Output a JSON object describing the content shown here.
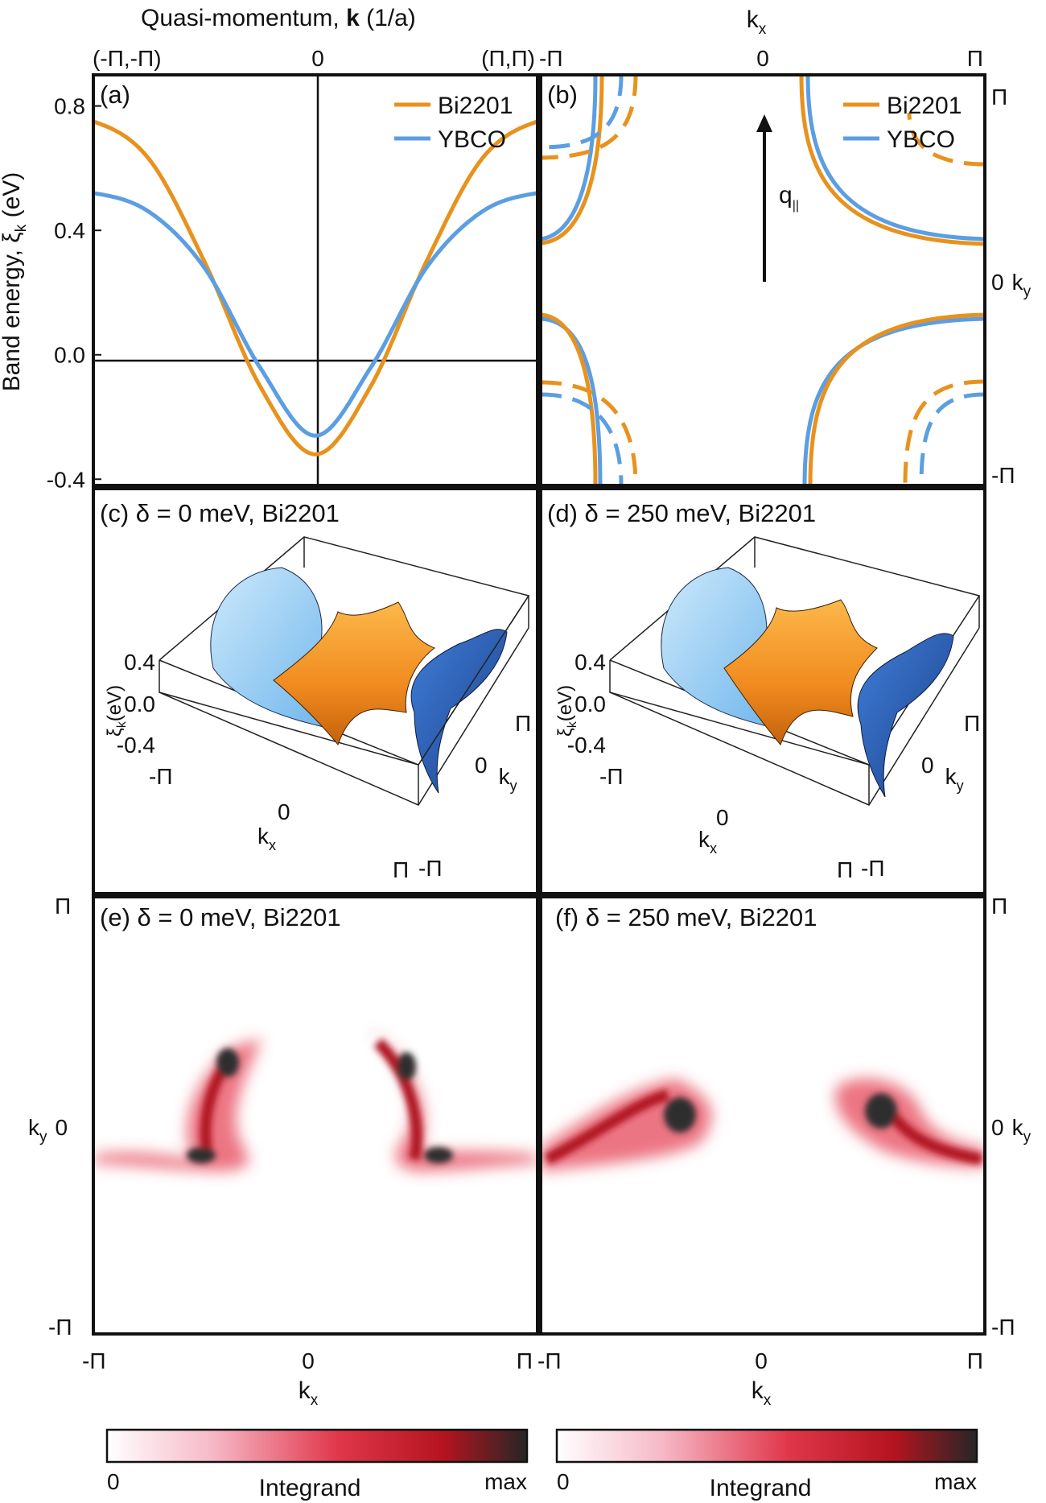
{
  "figure": {
    "top_axis_title": "Quasi-momentum, ",
    "top_axis_title_bold": "k",
    "top_axis_title_unit": " (1/a)",
    "top_ticks_a": [
      "(-Π,-Π)",
      "0",
      "(Π,Π)"
    ],
    "top_ticks_b": [
      "-Π",
      "0",
      "Π"
    ],
    "top_label_b": "k",
    "top_label_b_sub": "x",
    "left_axis_label_a": "Band energy, ξ",
    "left_axis_label_a_sub": "k",
    "left_axis_label_a_unit": " (eV)",
    "right_ticks_b": [
      "Π",
      "0",
      "-Π"
    ],
    "right_label_b": "k",
    "right_label_b_sub": "y"
  },
  "panel_a": {
    "label": "(a)",
    "ylim": [
      -0.42,
      0.9
    ],
    "yticks": [
      "0.8",
      "0.4",
      "0.0",
      "-0.4"
    ],
    "legend": [
      "Bi2201",
      "YBCO"
    ]
  },
  "panel_b": {
    "label": "(b)",
    "legend": [
      "Bi2201",
      "YBCO"
    ],
    "arrow_label": "q",
    "arrow_sub": "||"
  },
  "panel_c": {
    "label": "(c) δ = 0 meV, Bi2201",
    "z_ticks": [
      "0.4",
      "0.0",
      "-0.4"
    ],
    "z_label": "ξ",
    "z_label_sub": "k",
    "z_label_unit": "(eV)",
    "kx_ticks": [
      "-Π",
      "0",
      "Π"
    ],
    "ky_ticks": [
      "Π",
      "0",
      "-Π"
    ],
    "kx_label": "k",
    "kx_sub": "x",
    "ky_label": "k",
    "ky_sub": "y"
  },
  "panel_d": {
    "label": "(d) δ = 250 meV, Bi2201",
    "z_ticks": [
      "0.4",
      "0.0",
      "-0.4"
    ],
    "z_label": "ξ",
    "z_label_sub": "k",
    "z_label_unit": "(eV)",
    "kx_ticks": [
      "-Π",
      "0",
      "Π"
    ],
    "ky_ticks": [
      "Π",
      "0",
      "-Π"
    ],
    "kx_label": "k",
    "kx_sub": "x",
    "ky_label": "k",
    "ky_sub": "y"
  },
  "panel_e": {
    "label": "(e) δ = 0 meV, Bi2201"
  },
  "panel_f": {
    "label": "(f) δ = 250 meV, Bi2201"
  },
  "bottom": {
    "left_ticks": [
      "Π",
      "0",
      "-Π"
    ],
    "left_label": "k",
    "left_label_sub": "y",
    "right_ticks": [
      "Π",
      "0",
      "-Π"
    ],
    "right_label": "k",
    "right_label_sub": "y",
    "x_ticks_e": [
      "-Π",
      "0",
      "Π"
    ],
    "x_ticks_f": [
      "-Π",
      "0",
      "Π"
    ],
    "x_label": "k",
    "x_label_sub": "x"
  },
  "colorbars": [
    {
      "min": "0",
      "title": "Integrand",
      "max": "max"
    },
    {
      "min": "0",
      "title": "Integrand",
      "max": "max"
    }
  ],
  "colors": {
    "bi2201": "#e8921e",
    "ybco": "#5b9ee2",
    "map_low": "#ffffff",
    "map_mid": "#d91f2e",
    "map_high": "#222222"
  },
  "chart_data": [
    {
      "type": "line",
      "title": "(a)",
      "xlabel": "Quasi-momentum, k (1/a)",
      "ylabel": "Band energy, ξk (eV)",
      "x_ticks": [
        "(-Π,-Π)",
        "0",
        "(Π,Π)"
      ],
      "x": [
        -1.0,
        -0.75,
        -0.5,
        -0.25,
        0.0,
        0.25,
        0.5,
        0.75,
        1.0
      ],
      "ylim": [
        -0.42,
        0.9
      ],
      "series": [
        {
          "name": "Bi2201",
          "values": [
            0.75,
            0.63,
            0.3,
            -0.1,
            -0.32,
            -0.1,
            0.3,
            0.63,
            0.75
          ]
        },
        {
          "name": "YBCO",
          "values": [
            0.52,
            0.46,
            0.28,
            -0.04,
            -0.26,
            -0.04,
            0.28,
            0.46,
            0.52
          ]
        }
      ]
    }
  ]
}
